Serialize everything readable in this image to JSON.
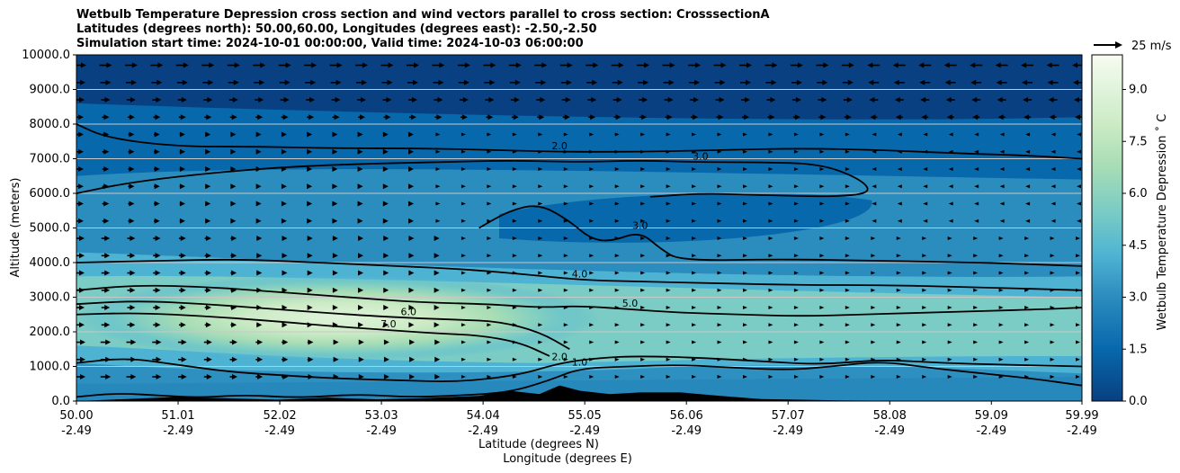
{
  "title": {
    "line1": "Wetbulb Temperature Depression cross section and wind vectors parallel to cross section: CrosssectionA",
    "line2": "Latitudes (degrees north): 50.00,60.00, Longitudes (degrees east): -2.50,-2.50",
    "line3": "Simulation start time: 2024-10-01 00:00:00, Valid time: 2024-10-03 06:00:00"
  },
  "colors": {
    "terrain": "#000000",
    "contour_line": "#000000",
    "gridline": "#c8c8c8",
    "colormap": [
      "#084081",
      "#0868ac",
      "#2b8cbe",
      "#4eb3d3",
      "#7bccc4",
      "#a8ddb5",
      "#ccebc5",
      "#e0f3db",
      "#f7fcf0"
    ]
  },
  "chart_data": {
    "type": "contourf",
    "xlabel": "Latitude (degrees N)",
    "xlabel2": "Longitude (degrees E)",
    "ylabel": "Altitude (meters)",
    "xlim": [
      50.0,
      59.99
    ],
    "ylim": [
      0,
      10000
    ],
    "x_ticks": [
      {
        "lat": "50.00",
        "lon": "-2.49",
        "value": 50.0
      },
      {
        "lat": "51.01",
        "lon": "-2.49",
        "value": 51.01
      },
      {
        "lat": "52.02",
        "lon": "-2.49",
        "value": 52.02
      },
      {
        "lat": "53.03",
        "lon": "-2.49",
        "value": 53.03
      },
      {
        "lat": "54.04",
        "lon": "-2.49",
        "value": 54.04
      },
      {
        "lat": "55.05",
        "lon": "-2.49",
        "value": 55.05
      },
      {
        "lat": "56.06",
        "lon": "-2.49",
        "value": 56.06
      },
      {
        "lat": "57.07",
        "lon": "-2.49",
        "value": 57.07
      },
      {
        "lat": "58.08",
        "lon": "-2.49",
        "value": 58.08
      },
      {
        "lat": "59.09",
        "lon": "-2.49",
        "value": 59.09
      },
      {
        "lat": "59.99",
        "lon": "-2.49",
        "value": 59.99
      }
    ],
    "y_ticks": [
      "0.0",
      "1000.0",
      "2000.0",
      "3000.0",
      "4000.0",
      "5000.0",
      "6000.0",
      "7000.0",
      "8000.0",
      "9000.0",
      "10000.0"
    ],
    "grid": "horizontal",
    "colorbar": {
      "label": "Wetbulb Temperature Depression ˚ C",
      "range": [
        0,
        10
      ],
      "ticks": [
        "0.0",
        "1.5",
        "3.0",
        "4.5",
        "6.0",
        "7.5",
        "9.0"
      ]
    },
    "quiver_key": {
      "label": "25 m/s",
      "speed": 25
    },
    "contour_lines": [
      {
        "level": 1.0,
        "points": [
          [
            50.0,
            120
          ],
          [
            50.4,
            230
          ],
          [
            50.9,
            150
          ],
          [
            51.2,
            100
          ],
          [
            51.7,
            180
          ],
          [
            52.2,
            90
          ],
          [
            52.8,
            200
          ],
          [
            53.3,
            110
          ],
          [
            53.8,
            160
          ],
          [
            54.3,
            250
          ],
          [
            54.7,
            600
          ],
          [
            55.0,
            950
          ],
          [
            55.5,
            1000
          ],
          [
            56.0,
            1050
          ],
          [
            56.6,
            950
          ],
          [
            57.1,
            900
          ],
          [
            57.5,
            1000
          ],
          [
            58.0,
            1150
          ],
          [
            58.5,
            950
          ],
          [
            59.0,
            800
          ],
          [
            59.5,
            650
          ],
          [
            59.99,
            450
          ]
        ]
      },
      {
        "level": 2.0,
        "points": [
          [
            50.0,
            1100
          ],
          [
            50.5,
            1250
          ],
          [
            51.0,
            1050
          ],
          [
            51.5,
            850
          ],
          [
            52.0,
            750
          ],
          [
            52.6,
            650
          ],
          [
            53.2,
            600
          ],
          [
            53.8,
            550
          ],
          [
            54.4,
            750
          ],
          [
            54.8,
            1100
          ],
          [
            55.2,
            1250
          ],
          [
            55.6,
            1300
          ],
          [
            56.2,
            1250
          ],
          [
            56.8,
            1150
          ],
          [
            57.4,
            1050
          ],
          [
            58.0,
            1200
          ],
          [
            58.6,
            1100
          ],
          [
            59.2,
            1050
          ],
          [
            59.99,
            1000
          ]
        ]
      },
      {
        "level": 2.0,
        "points": [
          [
            50.0,
            8000
          ],
          [
            50.3,
            7600
          ],
          [
            51.0,
            7350
          ],
          [
            51.8,
            7350
          ],
          [
            52.6,
            7300
          ],
          [
            53.4,
            7300
          ],
          [
            54.2,
            7250
          ],
          [
            54.8,
            7200
          ],
          [
            55.6,
            7200
          ],
          [
            56.4,
            7250
          ],
          [
            57.2,
            7300
          ],
          [
            58.0,
            7250
          ],
          [
            58.8,
            7150
          ],
          [
            59.4,
            7100
          ],
          [
            59.99,
            7000
          ]
        ]
      },
      {
        "level": 3.0,
        "points": [
          [
            50.0,
            6000
          ],
          [
            50.5,
            6300
          ],
          [
            51.2,
            6550
          ],
          [
            52.0,
            6750
          ],
          [
            52.8,
            6850
          ],
          [
            53.6,
            6900
          ],
          [
            54.3,
            6950
          ],
          [
            55.0,
            6900
          ],
          [
            55.6,
            6950
          ],
          [
            56.2,
            6900
          ],
          [
            56.8,
            6900
          ],
          [
            57.4,
            6850
          ],
          [
            57.8,
            6400
          ],
          [
            57.9,
            6000
          ],
          [
            57.5,
            5900
          ],
          [
            56.8,
            5950
          ],
          [
            56.2,
            6000
          ],
          [
            55.7,
            5900
          ]
        ]
      },
      {
        "level": 4.0,
        "points": [
          [
            50.0,
            4000
          ],
          [
            50.8,
            4050
          ],
          [
            51.6,
            4100
          ],
          [
            52.4,
            4000
          ],
          [
            53.2,
            3900
          ],
          [
            53.9,
            3800
          ],
          [
            54.5,
            3650
          ],
          [
            55.0,
            3500
          ],
          [
            55.6,
            3450
          ],
          [
            56.4,
            3400
          ],
          [
            57.2,
            3350
          ],
          [
            58.0,
            3350
          ],
          [
            58.8,
            3300
          ],
          [
            59.99,
            3200
          ]
        ]
      },
      {
        "level": 5.0,
        "points": [
          [
            50.0,
            3200
          ],
          [
            50.6,
            3350
          ],
          [
            51.3,
            3300
          ],
          [
            52.0,
            3150
          ],
          [
            52.7,
            3000
          ],
          [
            53.4,
            2850
          ],
          [
            54.1,
            2800
          ],
          [
            54.6,
            2700
          ],
          [
            55.0,
            2750
          ],
          [
            55.5,
            2650
          ],
          [
            56.0,
            2550
          ],
          [
            56.6,
            2500
          ],
          [
            57.2,
            2450
          ],
          [
            57.8,
            2500
          ],
          [
            58.4,
            2550
          ],
          [
            59.0,
            2600
          ],
          [
            59.6,
            2650
          ],
          [
            59.99,
            2700
          ]
        ]
      },
      {
        "level": 6.0,
        "points": [
          [
            50.0,
            2800
          ],
          [
            50.6,
            2900
          ],
          [
            51.3,
            2800
          ],
          [
            52.0,
            2650
          ],
          [
            52.7,
            2500
          ],
          [
            53.3,
            2400
          ],
          [
            53.8,
            2350
          ],
          [
            54.2,
            2300
          ],
          [
            54.6,
            2000
          ],
          [
            54.9,
            1500
          ]
        ]
      },
      {
        "level": 7.0,
        "points": [
          [
            50.0,
            2500
          ],
          [
            50.6,
            2550
          ],
          [
            51.3,
            2450
          ],
          [
            52.0,
            2300
          ],
          [
            52.6,
            2150
          ],
          [
            53.1,
            2050
          ],
          [
            53.6,
            1950
          ],
          [
            54.0,
            1900
          ],
          [
            54.4,
            1700
          ],
          [
            54.7,
            1300
          ]
        ]
      },
      {
        "level": 3.0,
        "points": [
          [
            54.0,
            5000
          ],
          [
            54.3,
            5500
          ],
          [
            54.6,
            5700
          ],
          [
            54.9,
            5200
          ],
          [
            55.1,
            4700
          ],
          [
            55.3,
            4600
          ],
          [
            55.6,
            4900
          ],
          [
            55.8,
            4400
          ],
          [
            56.0,
            4050
          ],
          [
            57.0,
            4100
          ],
          [
            58.0,
            4050
          ],
          [
            59.0,
            4000
          ],
          [
            59.99,
            3900
          ]
        ]
      }
    ]
  }
}
